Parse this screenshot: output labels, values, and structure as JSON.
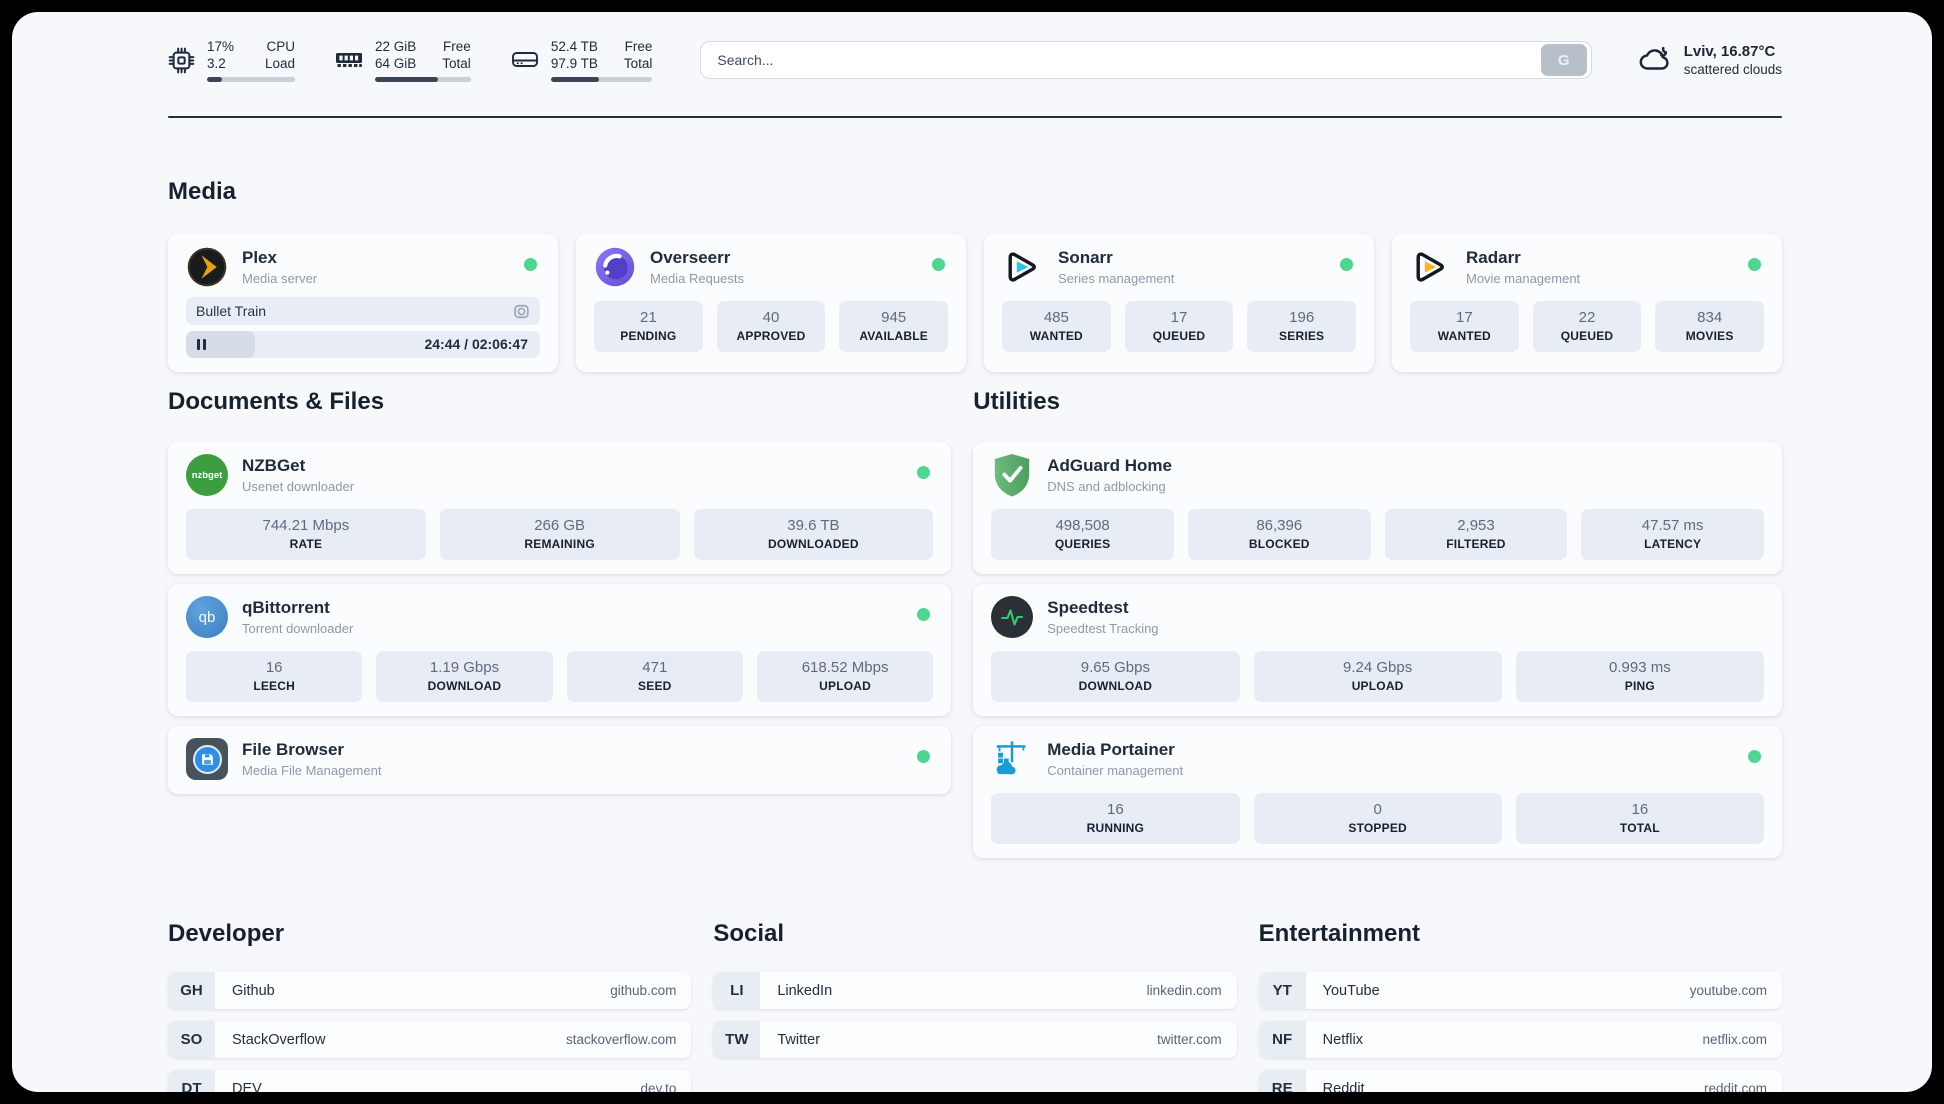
{
  "header": {
    "cpu": {
      "value_top": "17%",
      "value_bottom": "3.2",
      "label_top": "CPU",
      "label_bottom": "Load",
      "progress_pct": 17
    },
    "memory": {
      "value_top": "22 GiB",
      "value_bottom": "64 GiB",
      "label_top": "Free",
      "label_bottom": "Total",
      "progress_pct": 66
    },
    "disk": {
      "value_top": "52.4 TB",
      "value_bottom": "97.9 TB",
      "label_top": "Free",
      "label_bottom": "Total",
      "progress_pct": 47
    },
    "search": {
      "placeholder": "Search...",
      "button_label": "G"
    },
    "weather": {
      "summary": "Lviv, 16.87°C",
      "condition": "scattered clouds"
    }
  },
  "sections": {
    "media": "Media",
    "documents": "Documents & Files",
    "utilities": "Utilities",
    "developer": "Developer",
    "social": "Social",
    "entertainment": "Entertainment"
  },
  "apps": {
    "plex": {
      "title": "Plex",
      "subtitle": "Media server",
      "now_playing": "Bullet Train",
      "time": "24:44 / 02:06:47",
      "progress_pct": 19.5
    },
    "overseerr": {
      "title": "Overseerr",
      "subtitle": "Media Requests",
      "stats": [
        {
          "value": "21",
          "label": "PENDING"
        },
        {
          "value": "40",
          "label": "APPROVED"
        },
        {
          "value": "945",
          "label": "AVAILABLE"
        }
      ]
    },
    "sonarr": {
      "title": "Sonarr",
      "subtitle": "Series management",
      "stats": [
        {
          "value": "485",
          "label": "WANTED"
        },
        {
          "value": "17",
          "label": "QUEUED"
        },
        {
          "value": "196",
          "label": "SERIES"
        }
      ]
    },
    "radarr": {
      "title": "Radarr",
      "subtitle": "Movie management",
      "stats": [
        {
          "value": "17",
          "label": "WANTED"
        },
        {
          "value": "22",
          "label": "QUEUED"
        },
        {
          "value": "834",
          "label": "MOVIES"
        }
      ]
    },
    "nzbget": {
      "title": "NZBGet",
      "subtitle": "Usenet downloader",
      "icon_text": "nzbget",
      "stats": [
        {
          "value": "744.21 Mbps",
          "label": "RATE"
        },
        {
          "value": "266 GB",
          "label": "REMAINING"
        },
        {
          "value": "39.6 TB",
          "label": "DOWNLOADED"
        }
      ]
    },
    "qbittorrent": {
      "title": "qBittorrent",
      "subtitle": "Torrent downloader",
      "icon_text": "qb",
      "stats": [
        {
          "value": "16",
          "label": "LEECH"
        },
        {
          "value": "1.19 Gbps",
          "label": "DOWNLOAD"
        },
        {
          "value": "471",
          "label": "SEED"
        },
        {
          "value": "618.52 Mbps",
          "label": "UPLOAD"
        }
      ]
    },
    "filebrowser": {
      "title": "File Browser",
      "subtitle": "Media File Management"
    },
    "adguard": {
      "title": "AdGuard Home",
      "subtitle": "DNS and adblocking",
      "stats": [
        {
          "value": "498,508",
          "label": "QUERIES"
        },
        {
          "value": "86,396",
          "label": "BLOCKED"
        },
        {
          "value": "2,953",
          "label": "FILTERED"
        },
        {
          "value": "47.57 ms",
          "label": "LATENCY"
        }
      ]
    },
    "speedtest": {
      "title": "Speedtest",
      "subtitle": "Speedtest Tracking",
      "stats": [
        {
          "value": "9.65 Gbps",
          "label": "DOWNLOAD"
        },
        {
          "value": "9.24 Gbps",
          "label": "UPLOAD"
        },
        {
          "value": "0.993 ms",
          "label": "PING"
        }
      ]
    },
    "portainer": {
      "title": "Media Portainer",
      "subtitle": "Container management",
      "stats": [
        {
          "value": "16",
          "label": "RUNNING"
        },
        {
          "value": "0",
          "label": "STOPPED"
        },
        {
          "value": "16",
          "label": "TOTAL"
        }
      ]
    }
  },
  "bookmarks": {
    "developer": [
      {
        "abbr": "GH",
        "name": "Github",
        "url": "github.com"
      },
      {
        "abbr": "SO",
        "name": "StackOverflow",
        "url": "stackoverflow.com"
      },
      {
        "abbr": "DT",
        "name": "DEV",
        "url": "dev.to"
      }
    ],
    "social": [
      {
        "abbr": "LI",
        "name": "LinkedIn",
        "url": "linkedin.com"
      },
      {
        "abbr": "TW",
        "name": "Twitter",
        "url": "twitter.com"
      }
    ],
    "entertainment": [
      {
        "abbr": "YT",
        "name": "YouTube",
        "url": "youtube.com"
      },
      {
        "abbr": "NF",
        "name": "Netflix",
        "url": "netflix.com"
      },
      {
        "abbr": "RE",
        "name": "Reddit",
        "url": "reddit.com"
      }
    ]
  },
  "colors": {
    "status_online": "#4ed690",
    "plex_amber": "#e5a00d",
    "sonarr_cyan": "#33c1ef",
    "radarr_amber": "#f7b32b",
    "page_bg": "#f6f8fb",
    "pill_bg": "#e8edf5",
    "navy_text": "#1c2638"
  }
}
